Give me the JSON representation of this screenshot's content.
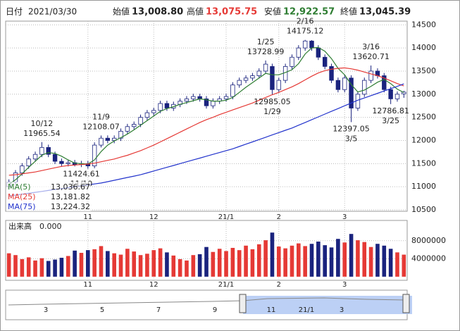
{
  "header": {
    "date_label": "日付",
    "date": "2021/03/30",
    "open_label": "始値",
    "open": "13,008.80",
    "high_label": "高値",
    "high": "13,075.75",
    "low_label": "安値",
    "low": "12,922.57",
    "close_label": "終値",
    "close": "13,045.39"
  },
  "chart_data": {
    "type": "candlestick",
    "categories": [
      null,
      null,
      null,
      null,
      null,
      null,
      null,
      null,
      null,
      null,
      null,
      null,
      "11",
      null,
      null,
      null,
      null,
      null,
      null,
      null,
      null,
      null,
      "12",
      null,
      null,
      null,
      null,
      null,
      null,
      null,
      null,
      null,
      null,
      "21/1",
      null,
      null,
      null,
      null,
      null,
      null,
      null,
      "2",
      null,
      null,
      null,
      null,
      null,
      null,
      null,
      null,
      null,
      "3",
      null,
      null,
      null,
      null,
      null,
      null,
      null,
      null,
      null
    ],
    "open": [
      11000,
      11100,
      11300,
      11450,
      11600,
      11700,
      11850,
      11700,
      11550,
      11500,
      11520,
      11480,
      11500,
      11450,
      11900,
      12050,
      12000,
      12050,
      12200,
      12300,
      12350,
      12500,
      12600,
      12650,
      12800,
      12700,
      12780,
      12850,
      12900,
      12950,
      12900,
      12750,
      12850,
      12900,
      12950,
      13200,
      13300,
      13350,
      13400,
      13500,
      13600,
      13100,
      13300,
      13600,
      13800,
      14000,
      14150,
      14000,
      13800,
      13600,
      13300,
      13100,
      13350,
      12700,
      13000,
      13300,
      13500,
      13400,
      13100,
      12900,
      13008.8
    ],
    "high": [
      11160,
      11360,
      11510,
      11660,
      11760,
      11965.54,
      11910,
      11760,
      11610,
      11580,
      11580,
      11560,
      11560,
      11960,
      12108.07,
      12110,
      12110,
      12260,
      12360,
      12410,
      12560,
      12660,
      12710,
      12860,
      12860,
      12840,
      12910,
      12960,
      13010,
      13010,
      12960,
      12910,
      12960,
      13010,
      13260,
      13360,
      13410,
      13460,
      13560,
      13728.99,
      13660,
      13360,
      13660,
      13860,
      14060,
      14175.12,
      14170,
      14060,
      13860,
      13660,
      13360,
      13410,
      13410,
      13060,
      13360,
      13620.71,
      13560,
      13460,
      13160,
      13060,
      13075.75
    ],
    "low": [
      10940,
      11040,
      11240,
      11390,
      11540,
      11640,
      11640,
      11490,
      11440,
      11440,
      11440,
      11424.61,
      11390,
      11400,
      11850,
      11940,
      11940,
      11990,
      12140,
      12240,
      12290,
      12440,
      12540,
      12590,
      12640,
      12640,
      12720,
      12790,
      12840,
      12840,
      12690,
      12690,
      12790,
      12840,
      12890,
      13140,
      13240,
      13290,
      13340,
      13440,
      12985.05,
      13040,
      13240,
      13540,
      13740,
      13940,
      13940,
      13740,
      13540,
      13240,
      13040,
      13040,
      12397.05,
      12640,
      12940,
      13240,
      13340,
      13040,
      12786.81,
      12840,
      12922.57
    ],
    "close": [
      11100,
      11300,
      11450,
      11600,
      11700,
      11850,
      11700,
      11550,
      11500,
      11520,
      11480,
      11500,
      11450,
      11900,
      12050,
      12000,
      12050,
      12200,
      12300,
      12350,
      12500,
      12600,
      12650,
      12800,
      12700,
      12780,
      12850,
      12900,
      12950,
      12900,
      12750,
      12850,
      12900,
      12950,
      13200,
      13300,
      13350,
      13400,
      13500,
      13650,
      13100,
      13300,
      13600,
      13800,
      14000,
      14150,
      14000,
      13800,
      13600,
      13300,
      13100,
      13350,
      12700,
      13000,
      13300,
      13500,
      13400,
      13100,
      12900,
      13000,
      13045.39
    ],
    "up_color": "#ffffff",
    "down_color": "#1a237e",
    "candle_edge": "#1a237e",
    "ylim": [
      10470,
      14580
    ],
    "yticks": [
      10500,
      11000,
      11500,
      12000,
      12500,
      13000,
      13500,
      14000,
      14500
    ],
    "grid": true,
    "series": [
      {
        "name": "MA(5)",
        "value_label": "13,036.67",
        "color": "#2e7d32",
        "values": [
          11050,
          11150,
          11280,
          11420,
          11550,
          11680,
          11740,
          11720,
          11660,
          11580,
          11510,
          11500,
          11490,
          11580,
          11760,
          11900,
          11990,
          12060,
          12140,
          12230,
          12330,
          12430,
          12530,
          12630,
          12690,
          12730,
          12780,
          12820,
          12860,
          12900,
          12880,
          12850,
          12850,
          12870,
          12930,
          13040,
          13150,
          13250,
          13350,
          13450,
          13420,
          13420,
          13470,
          13530,
          13660,
          13870,
          14000,
          14010,
          13930,
          13770,
          13560,
          13420,
          13210,
          13050,
          13090,
          13170,
          13260,
          13320,
          13230,
          13110,
          13036.67
        ]
      },
      {
        "name": "MA(25)",
        "value_label": "13,181.82",
        "color": "#e53935",
        "values": [
          11250,
          11260,
          11280,
          11300,
          11320,
          11350,
          11380,
          11410,
          11440,
          11460,
          11470,
          11480,
          11490,
          11510,
          11540,
          11570,
          11600,
          11640,
          11680,
          11730,
          11780,
          11840,
          11900,
          11970,
          12040,
          12110,
          12180,
          12250,
          12320,
          12390,
          12450,
          12500,
          12560,
          12610,
          12660,
          12710,
          12760,
          12810,
          12870,
          12930,
          12990,
          13040,
          13100,
          13160,
          13230,
          13310,
          13390,
          13460,
          13510,
          13540,
          13560,
          13570,
          13550,
          13520,
          13480,
          13440,
          13400,
          13350,
          13290,
          13230,
          13181.82
        ]
      },
      {
        "name": "MA(75)",
        "value_label": "13,224.32",
        "color": "#2233cc",
        "values": [
          10800,
          10820,
          10840,
          10860,
          10880,
          10900,
          10920,
          10940,
          10960,
          10980,
          11000,
          11020,
          11040,
          11060,
          11080,
          11110,
          11140,
          11170,
          11200,
          11230,
          11260,
          11300,
          11340,
          11380,
          11420,
          11460,
          11500,
          11540,
          11580,
          11620,
          11660,
          11700,
          11740,
          11780,
          11820,
          11870,
          11920,
          11970,
          12020,
          12070,
          12120,
          12170,
          12220,
          12270,
          12330,
          12390,
          12450,
          12510,
          12570,
          12630,
          12690,
          12750,
          12810,
          12870,
          12920,
          12970,
          13020,
          13070,
          13120,
          13170,
          13224.32
        ]
      }
    ],
    "annotations": [
      {
        "date": "10/12",
        "value": 11965.54
      },
      {
        "date": "11/9",
        "value": 12108.07
      },
      {
        "date": "11/10",
        "value": 11424.61
      },
      {
        "date": "1/25",
        "value": 13728.99
      },
      {
        "date": "1/29",
        "value": 12985.05
      },
      {
        "date": "2/16",
        "value": 14175.12
      },
      {
        "date": "3/16",
        "value": 13620.71
      },
      {
        "date": "3/5",
        "value": 12397.05
      },
      {
        "date": "3/25",
        "value": 12786.81
      }
    ],
    "volume": {
      "label": "出来高",
      "value_text": "0.000",
      "up_color": "#e53935",
      "down_color": "#1a237e",
      "ylim": [
        -800000,
        12500000
      ],
      "yticks": [
        4000000,
        8000000
      ],
      "values": [
        5200000,
        4800000,
        3900000,
        4300000,
        3600000,
        4100000,
        3500000,
        3800000,
        4200000,
        4600000,
        5800000,
        5300000,
        5900000,
        6100000,
        6800000,
        5700000,
        5200000,
        4900000,
        6200000,
        5600000,
        4800000,
        5100000,
        5900000,
        6300000,
        5400000,
        4700000,
        3900000,
        3600000,
        4800000,
        5000000,
        6600000,
        5500000,
        6200000,
        5700000,
        6400000,
        5900000,
        6900000,
        6100000,
        7200000,
        8100000,
        9800000,
        6700000,
        6300000,
        6900000,
        7400000,
        6800000,
        7300000,
        7800000,
        7000000,
        6500000,
        8400000,
        7600000,
        9500000,
        8100000,
        7700000,
        6600000,
        7300000,
        6900000,
        6200000,
        5400000,
        4900000
      ]
    }
  },
  "navigator": {
    "labels": [
      "3",
      "5",
      "7",
      "9",
      "11",
      "21/1",
      "3"
    ]
  }
}
